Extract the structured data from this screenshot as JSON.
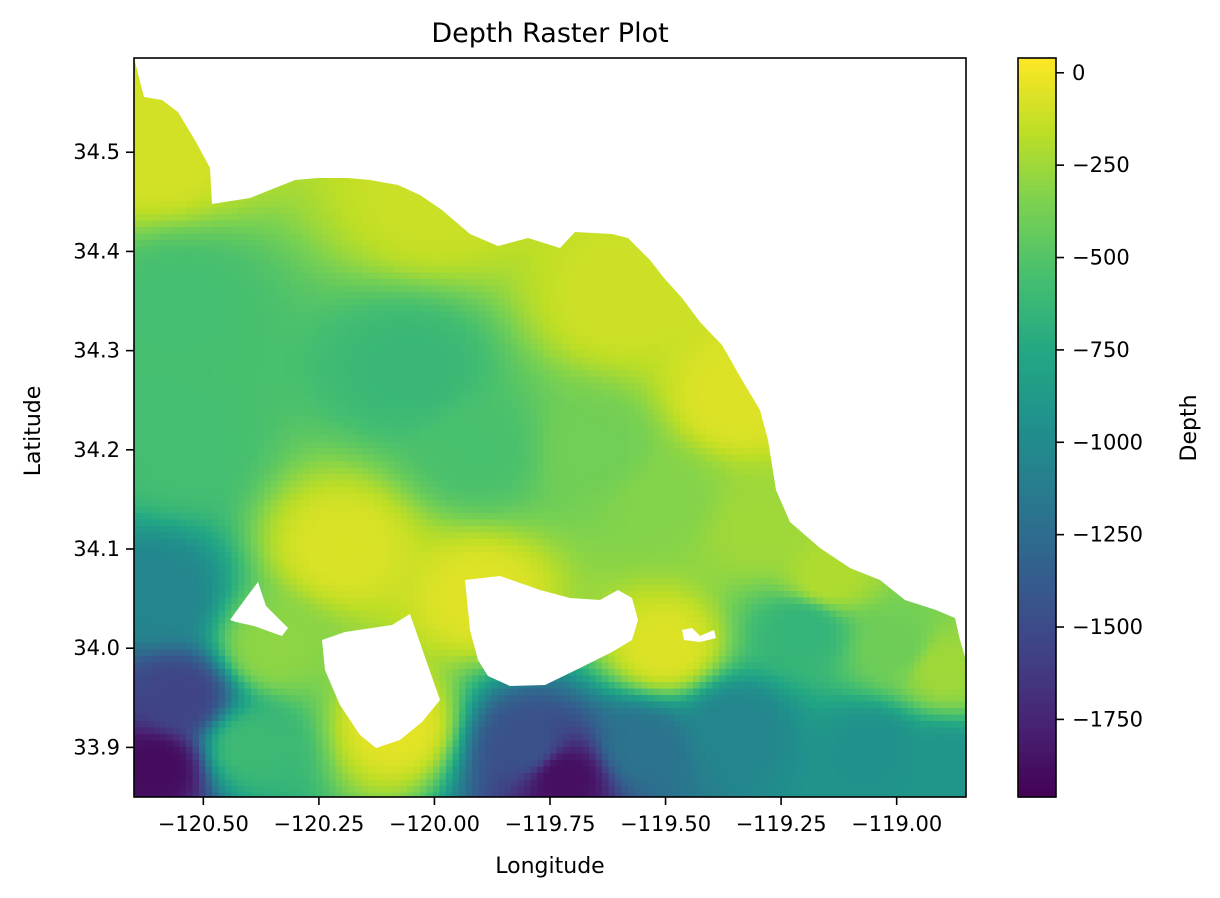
{
  "chart_data": {
    "type": "heatmap",
    "title": "Depth Raster Plot",
    "xlabel": "Longitude",
    "ylabel": "Latitude",
    "xlim": [
      -120.65,
      -118.85
    ],
    "ylim": [
      33.85,
      34.595
    ],
    "x_ticks": [
      {
        "value": -120.5,
        "label": "−120.50"
      },
      {
        "value": -120.25,
        "label": "−120.25"
      },
      {
        "value": -120.0,
        "label": "−120.00"
      },
      {
        "value": -119.75,
        "label": "−119.75"
      },
      {
        "value": -119.5,
        "label": "−119.50"
      },
      {
        "value": -119.25,
        "label": "−119.25"
      },
      {
        "value": -119.0,
        "label": "−119.00"
      }
    ],
    "y_ticks": [
      {
        "value": 33.9,
        "label": "33.9"
      },
      {
        "value": 34.0,
        "label": "34.0"
      },
      {
        "value": 34.1,
        "label": "34.1"
      },
      {
        "value": 34.2,
        "label": "34.2"
      },
      {
        "value": 34.3,
        "label": "34.3"
      },
      {
        "value": 34.4,
        "label": "34.4"
      },
      {
        "value": 34.5,
        "label": "34.5"
      }
    ],
    "colorbar": {
      "label": "Depth",
      "colormap": "viridis",
      "range": [
        -1960,
        40
      ],
      "ticks": [
        {
          "value": 0,
          "label": "0"
        },
        {
          "value": -250,
          "label": "−250"
        },
        {
          "value": -500,
          "label": "−500"
        },
        {
          "value": -750,
          "label": "−750"
        },
        {
          "value": -1000,
          "label": "−1000"
        },
        {
          "value": -1250,
          "label": "−1250"
        },
        {
          "value": -1500,
          "label": "−1500"
        },
        {
          "value": -1750,
          "label": "−1750"
        }
      ]
    },
    "depth_field": {
      "note_units": "Depth",
      "anchors": [
        {
          "lon": -120.6,
          "lat": 34.5,
          "depth": -90
        },
        {
          "lon": -120.55,
          "lat": 34.35,
          "depth": -560
        },
        {
          "lon": -120.55,
          "lat": 34.2,
          "depth": -560
        },
        {
          "lon": -120.05,
          "lat": 34.28,
          "depth": -620
        },
        {
          "lon": -119.9,
          "lat": 34.2,
          "depth": -540
        },
        {
          "lon": -119.65,
          "lat": 34.2,
          "depth": -390
        },
        {
          "lon": -119.5,
          "lat": 34.15,
          "depth": -330
        },
        {
          "lon": -119.3,
          "lat": 34.12,
          "depth": -250
        },
        {
          "lon": -120.0,
          "lat": 34.45,
          "depth": -120
        },
        {
          "lon": -119.6,
          "lat": 34.35,
          "depth": -110
        },
        {
          "lon": -119.35,
          "lat": 34.25,
          "depth": -60
        },
        {
          "lon": -120.2,
          "lat": 34.1,
          "depth": -70
        },
        {
          "lon": -119.9,
          "lat": 34.05,
          "depth": -50
        },
        {
          "lon": -120.6,
          "lat": 33.88,
          "depth": -1900
        },
        {
          "lon": -120.55,
          "lat": 33.95,
          "depth": -1550
        },
        {
          "lon": -120.6,
          "lat": 34.05,
          "depth": -1050
        },
        {
          "lon": -120.4,
          "lat": 33.9,
          "depth": -600
        },
        {
          "lon": -120.35,
          "lat": 34.0,
          "depth": -300
        },
        {
          "lon": -119.72,
          "lat": 33.87,
          "depth": -1880
        },
        {
          "lon": -119.8,
          "lat": 33.9,
          "depth": -1450
        },
        {
          "lon": -119.55,
          "lat": 33.9,
          "depth": -1200
        },
        {
          "lon": -119.35,
          "lat": 33.92,
          "depth": -1050
        },
        {
          "lon": -119.05,
          "lat": 33.9,
          "depth": -950
        },
        {
          "lon": -118.9,
          "lat": 33.88,
          "depth": -920
        },
        {
          "lon": -119.2,
          "lat": 34.02,
          "depth": -650
        },
        {
          "lon": -119.0,
          "lat": 34.0,
          "depth": -400
        },
        {
          "lon": -118.9,
          "lat": 33.98,
          "depth": -250
        },
        {
          "lon": -119.15,
          "lat": 34.07,
          "depth": -200
        },
        {
          "lon": -119.5,
          "lat": 34.0,
          "depth": -60
        },
        {
          "lon": -120.08,
          "lat": 33.92,
          "depth": -40
        }
      ]
    }
  }
}
